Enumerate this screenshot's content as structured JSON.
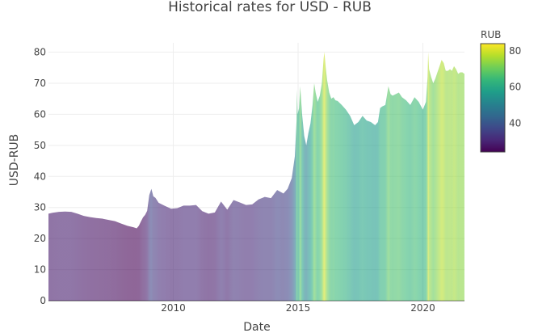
{
  "chart_data": {
    "type": "area",
    "title": "Historical rates for USD - RUB",
    "xlabel": "Date",
    "ylabel": "USD-RUB",
    "xlim": [
      "2005-01-01",
      "2021-09-01"
    ],
    "ylim": [
      0,
      83
    ],
    "x_ticks": [
      "2010",
      "2015",
      "2020"
    ],
    "y_ticks": [
      0,
      10,
      20,
      30,
      40,
      50,
      60,
      70,
      80
    ],
    "grid": true,
    "colorbar": {
      "title": "RUB",
      "range": [
        24,
        84
      ],
      "ticks": [
        40,
        60,
        80
      ],
      "colorscale": [
        "#440154",
        "#482878",
        "#3e4989",
        "#31688e",
        "#26828e",
        "#1f9e89",
        "#35b779",
        "#6ece58",
        "#b5de2b",
        "#fde725"
      ]
    },
    "series": [
      {
        "x": [
          "2005-01-01",
          "2005-03-01",
          "2005-06-01",
          "2005-09-01",
          "2005-12-01",
          "2006-03-01",
          "2006-06-01",
          "2006-09-01",
          "2006-12-01",
          "2007-03-01",
          "2007-06-01",
          "2007-09-01",
          "2007-12-01",
          "2008-03-01",
          "2008-06-01",
          "2008-07-15",
          "2008-08-15",
          "2008-09-15",
          "2008-10-15",
          "2008-11-15",
          "2008-12-15",
          "2009-01-15",
          "2009-02-15",
          "2009-03-15",
          "2009-04-15",
          "2009-06-01",
          "2009-09-01",
          "2009-12-01",
          "2010-03-01",
          "2010-06-01",
          "2010-09-01",
          "2010-12-01",
          "2011-03-01",
          "2011-06-01",
          "2011-09-01",
          "2011-12-01",
          "2012-03-01",
          "2012-06-01",
          "2012-09-01",
          "2012-12-01",
          "2013-03-01",
          "2013-06-01",
          "2013-09-01",
          "2013-12-01",
          "2014-03-01",
          "2014-06-01",
          "2014-08-01",
          "2014-10-01",
          "2014-11-15",
          "2014-12-10",
          "2014-12-16",
          "2014-12-25",
          "2015-01-15",
          "2015-02-01",
          "2015-03-01",
          "2015-04-01",
          "2015-05-01",
          "2015-06-01",
          "2015-07-01",
          "2015-08-01",
          "2015-08-25",
          "2015-09-15",
          "2015-10-15",
          "2015-11-15",
          "2015-12-15",
          "2016-01-10",
          "2016-01-21",
          "2016-02-10",
          "2016-03-01",
          "2016-04-01",
          "2016-05-01",
          "2016-06-01",
          "2016-07-01",
          "2016-08-01",
          "2016-10-01",
          "2016-12-01",
          "2017-02-01",
          "2017-04-01",
          "2017-06-01",
          "2017-08-01",
          "2017-10-01",
          "2017-12-01",
          "2018-02-01",
          "2018-03-15",
          "2018-04-15",
          "2018-05-15",
          "2018-07-01",
          "2018-08-15",
          "2018-09-15",
          "2018-10-15",
          "2018-12-01",
          "2019-01-15",
          "2019-03-01",
          "2019-05-01",
          "2019-07-01",
          "2019-09-01",
          "2019-11-01",
          "2020-01-01",
          "2020-02-15",
          "2020-03-10",
          "2020-03-19",
          "2020-04-01",
          "2020-05-01",
          "2020-06-01",
          "2020-07-01",
          "2020-08-01",
          "2020-09-01",
          "2020-10-01",
          "2020-11-01",
          "2020-12-01",
          "2021-01-01",
          "2021-02-01",
          "2021-03-01",
          "2021-04-01",
          "2021-05-01",
          "2021-06-01",
          "2021-07-01",
          "2021-08-01",
          "2021-08-31"
        ],
        "y": [
          28,
          28.3,
          28.6,
          28.7,
          28.6,
          28.0,
          27.3,
          26.9,
          26.6,
          26.4,
          26.0,
          25.6,
          24.8,
          24.1,
          23.6,
          23.3,
          24.1,
          25.5,
          26.8,
          27.6,
          28.9,
          34.0,
          36.0,
          33.6,
          33.1,
          31.5,
          30.5,
          29.6,
          29.8,
          30.6,
          30.6,
          30.8,
          28.8,
          28.0,
          28.4,
          31.9,
          29.3,
          32.4,
          31.6,
          30.8,
          31.0,
          32.6,
          33.4,
          33.0,
          35.6,
          34.5,
          36.0,
          39.5,
          46.5,
          58.0,
          68.0,
          60.0,
          62.0,
          69.0,
          60.0,
          53.0,
          50.0,
          54.0,
          57.0,
          63.0,
          70.0,
          67.0,
          64.0,
          66.0,
          70.0,
          78.0,
          80.0,
          75.0,
          71.0,
          67.0,
          65.0,
          65.5,
          64.5,
          64.3,
          63.0,
          61.5,
          59.5,
          56.5,
          57.5,
          59.5,
          58.0,
          57.5,
          56.5,
          57.5,
          62.0,
          62.5,
          63.0,
          69.0,
          66.5,
          66.0,
          66.5,
          67.0,
          65.5,
          64.5,
          63.0,
          65.5,
          64.0,
          61.5,
          64.0,
          72.0,
          80.0,
          74.5,
          72.0,
          70.0,
          71.5,
          73.5,
          75.5,
          77.5,
          76.5,
          74.0,
          74.0,
          74.5,
          74.0,
          75.5,
          74.5,
          73.0,
          73.5,
          73.5,
          73.0
        ]
      }
    ]
  }
}
